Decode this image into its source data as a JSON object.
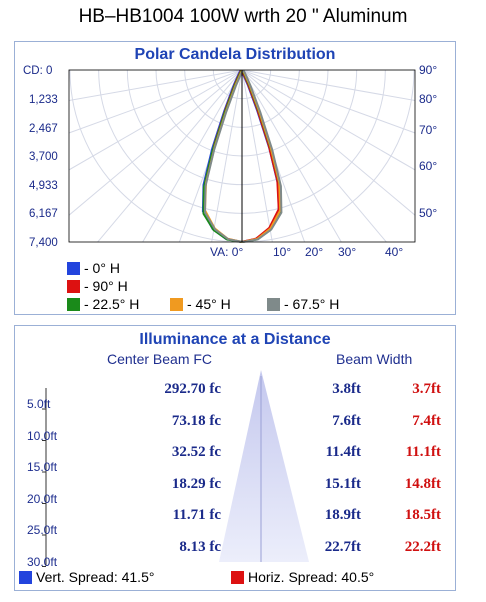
{
  "title": "HB–HB1004 100W wrth 20 \"  Aluminum",
  "polar": {
    "title": "Polar Candela Distribution",
    "cd_labels": [
      "CD: 0",
      "1,233",
      "2,467",
      "3,700",
      "4,933",
      "6,167",
      "7,400"
    ],
    "right_angle_labels": [
      "90°",
      "80°",
      "70°",
      "60°",
      "50°"
    ],
    "bottom_angle_labels": [
      "VA: 0°",
      "10°",
      "20°",
      "30°",
      "40°"
    ],
    "legend": [
      "- 0° H",
      "- 90° H",
      "- 22.5° H",
      "- 45° H",
      "- 67.5° H"
    ]
  },
  "illuminance": {
    "title": "Illuminance at a Distance",
    "col_center": "Center Beam FC",
    "col_width": "Beam Width",
    "rows": [
      {
        "dist": "5.0ft",
        "fc": "292.70 fc",
        "vert": "3.8ft",
        "horiz": "3.7ft"
      },
      {
        "dist": "10.0ft",
        "fc": "73.18 fc",
        "vert": "7.6ft",
        "horiz": "7.4ft"
      },
      {
        "dist": "15.0ft",
        "fc": "32.52 fc",
        "vert": "11.4ft",
        "horiz": "11.1ft"
      },
      {
        "dist": "20.0ft",
        "fc": "18.29 fc",
        "vert": "15.1ft",
        "horiz": "14.8ft"
      },
      {
        "dist": "25.0ft",
        "fc": "11.71 fc",
        "vert": "18.9ft",
        "horiz": "18.5ft"
      },
      {
        "dist": "30.0ft",
        "fc": "8.13 fc",
        "vert": "22.7ft",
        "horiz": "22.2ft"
      }
    ],
    "vert_spread": "Vert. Spread: 41.5°",
    "horiz_spread": "Horiz. Spread: 40.5°"
  },
  "colors": {
    "h0": "#2244dd",
    "h90": "#dd1111",
    "h22_5": "#1a8a1a",
    "h45": "#f09a20",
    "h67_5": "#7f8a8a",
    "title_blue": "#1f44b5",
    "value_blue": "#1a2a8a",
    "value_red": "#d01010"
  },
  "chart_data": [
    {
      "type": "polar",
      "title": "Polar Candela Distribution",
      "radial_unit": "cd",
      "radial_range": [
        0,
        7400
      ],
      "radial_ticks": [
        0,
        1233,
        2467,
        3700,
        4933,
        6167,
        7400
      ],
      "angle_ticks_deg": [
        0,
        10,
        20,
        30,
        40,
        50,
        60,
        70,
        80,
        90
      ],
      "series": [
        {
          "name": "0° H",
          "color": "#2244dd",
          "points": [
            {
              "angle": 0,
              "cd": 7400
            },
            {
              "angle": 5,
              "cd": 7300
            },
            {
              "angle": 10,
              "cd": 6950
            },
            {
              "angle": 15,
              "cd": 6300
            },
            {
              "angle": 18,
              "cd": 5200
            },
            {
              "angle": 20,
              "cd": 3600
            },
            {
              "angle": 22,
              "cd": 1900
            },
            {
              "angle": 25,
              "cd": 700
            },
            {
              "angle": 30,
              "cd": 150
            },
            {
              "angle": 40,
              "cd": 20
            },
            {
              "angle": 90,
              "cd": 0
            }
          ]
        },
        {
          "name": "90° H",
          "color": "#dd1111",
          "points": [
            {
              "angle": 0,
              "cd": 7400
            },
            {
              "angle": 5,
              "cd": 7280
            },
            {
              "angle": 10,
              "cd": 6900
            },
            {
              "angle": 15,
              "cd": 6200
            },
            {
              "angle": 18,
              "cd": 5000
            },
            {
              "angle": 20,
              "cd": 3400
            },
            {
              "angle": 22,
              "cd": 1800
            },
            {
              "angle": 25,
              "cd": 650
            },
            {
              "angle": 30,
              "cd": 140
            },
            {
              "angle": 40,
              "cd": 20
            },
            {
              "angle": 90,
              "cd": 0
            }
          ]
        },
        {
          "name": "22.5° H",
          "color": "#1a8a1a",
          "points": [
            {
              "angle": 0,
              "cd": 7400
            },
            {
              "angle": 5,
              "cd": 7320
            },
            {
              "angle": 10,
              "cd": 7000
            },
            {
              "angle": 15,
              "cd": 6400
            },
            {
              "angle": 18,
              "cd": 5300
            },
            {
              "angle": 20,
              "cd": 3700
            },
            {
              "angle": 22,
              "cd": 2000
            },
            {
              "angle": 25,
              "cd": 750
            },
            {
              "angle": 30,
              "cd": 160
            },
            {
              "angle": 40,
              "cd": 20
            },
            {
              "angle": 90,
              "cd": 0
            }
          ]
        },
        {
          "name": "45° H",
          "color": "#f09a20",
          "points": [
            {
              "angle": 0,
              "cd": 7400
            },
            {
              "angle": 5,
              "cd": 7290
            },
            {
              "angle": 10,
              "cd": 6920
            },
            {
              "angle": 15,
              "cd": 6250
            },
            {
              "angle": 18,
              "cd": 5100
            },
            {
              "angle": 20,
              "cd": 3500
            },
            {
              "angle": 22,
              "cd": 1850
            },
            {
              "angle": 25,
              "cd": 680
            },
            {
              "angle": 30,
              "cd": 145
            },
            {
              "angle": 40,
              "cd": 20
            },
            {
              "angle": 90,
              "cd": 0
            }
          ]
        },
        {
          "name": "67.5° H",
          "color": "#7f8a8a",
          "points": [
            {
              "angle": 0,
              "cd": 7400
            },
            {
              "angle": 5,
              "cd": 7310
            },
            {
              "angle": 10,
              "cd": 6970
            },
            {
              "angle": 15,
              "cd": 6350
            },
            {
              "angle": 18,
              "cd": 5250
            },
            {
              "angle": 20,
              "cd": 3650
            },
            {
              "angle": 22,
              "cd": 1950
            },
            {
              "angle": 25,
              "cd": 720
            },
            {
              "angle": 30,
              "cd": 155
            },
            {
              "angle": 40,
              "cd": 20
            },
            {
              "angle": 90,
              "cd": 0
            }
          ]
        }
      ]
    },
    {
      "type": "table",
      "title": "Illuminance at a Distance",
      "columns": [
        "Center Beam FC",
        "Beam Width (Vert.)",
        "Beam Width (Horiz.)"
      ],
      "distance_ft": [
        5,
        10,
        15,
        20,
        25,
        30
      ],
      "center_beam_fc": [
        292.7,
        73.18,
        32.52,
        18.29,
        11.71,
        8.13
      ],
      "vert_width_ft": [
        3.8,
        7.6,
        11.4,
        15.1,
        18.9,
        22.7
      ],
      "horiz_width_ft": [
        3.7,
        7.4,
        11.1,
        14.8,
        18.5,
        22.2
      ],
      "vert_spread_deg": 41.5,
      "horiz_spread_deg": 40.5
    }
  ]
}
